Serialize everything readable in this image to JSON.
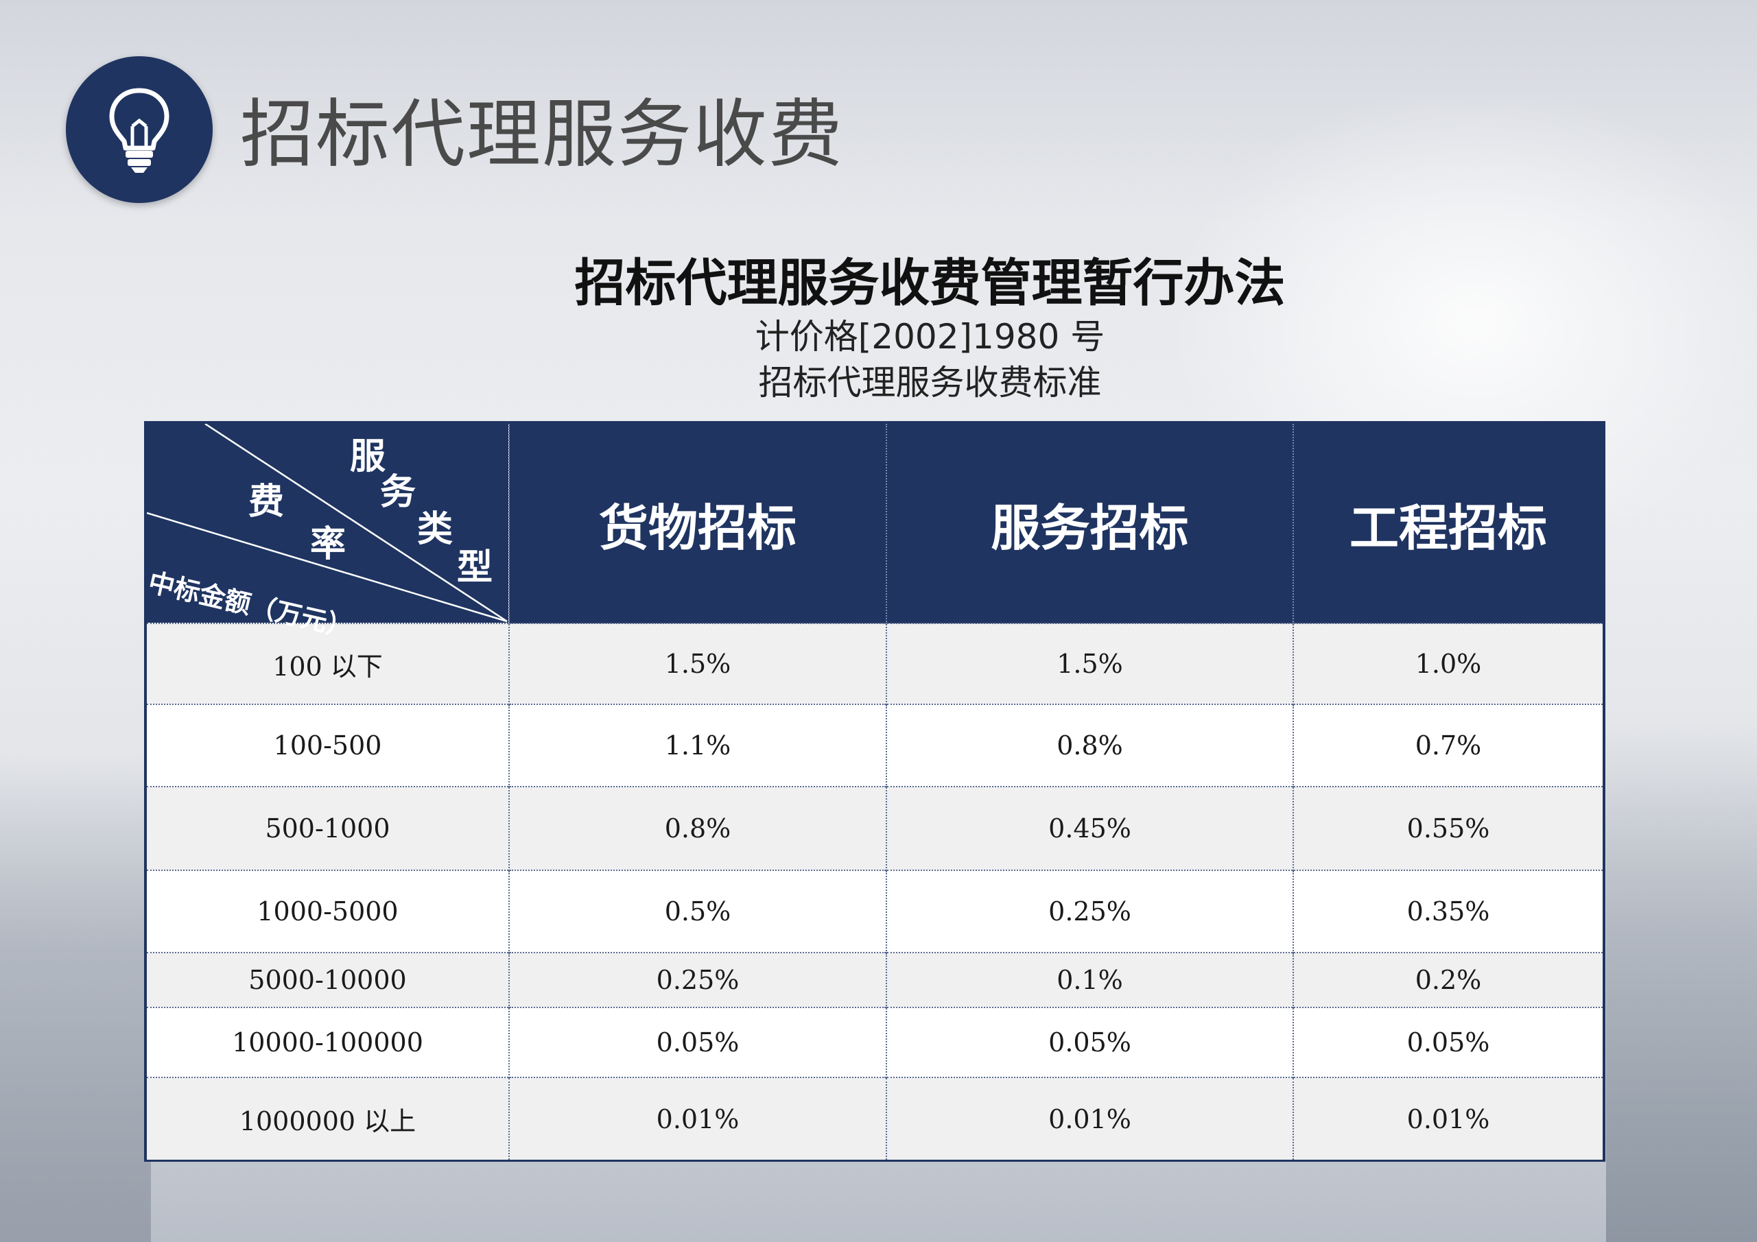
{
  "header": {
    "title": "招标代理服务收费",
    "icon": "lightbulb-icon"
  },
  "document": {
    "title": "招标代理服务收费管理暂行办法",
    "subtitle_line1": "计价格[2002]1980 号",
    "subtitle_line2": "招标代理服务收费标准"
  },
  "table": {
    "corner": {
      "service_type_chars": [
        "服",
        "务",
        "类",
        "型"
      ],
      "rate_chars": [
        "费",
        "率"
      ],
      "amount_label": "中标金额（万元）"
    },
    "columns": [
      "货物招标",
      "服务招标",
      "工程招标"
    ],
    "rows": [
      {
        "amount": "100  以下",
        "goods": "1.5%",
        "service": "1.5%",
        "engineering": "1.0%"
      },
      {
        "amount": "100-500",
        "goods": "1.1%",
        "service": "0.8%",
        "engineering": "0.7%"
      },
      {
        "amount": "500-1000",
        "goods": "0.8%",
        "service": "0.45%",
        "engineering": "0.55%"
      },
      {
        "amount": "1000-5000",
        "goods": "0.5%",
        "service": "0.25%",
        "engineering": "0.35%"
      },
      {
        "amount": "5000-10000",
        "goods": "0.25%",
        "service": "0.1%",
        "engineering": "0.2%"
      },
      {
        "amount": "10000-100000",
        "goods": "0.05%",
        "service": "0.05%",
        "engineering": "0.05%"
      },
      {
        "amount": "1000000  以上",
        "goods": "0.01%",
        "service": "0.01%",
        "engineering": "0.01%"
      }
    ]
  },
  "colors": {
    "navy": "#1f3461",
    "row_shade": "#f0f0f1"
  }
}
